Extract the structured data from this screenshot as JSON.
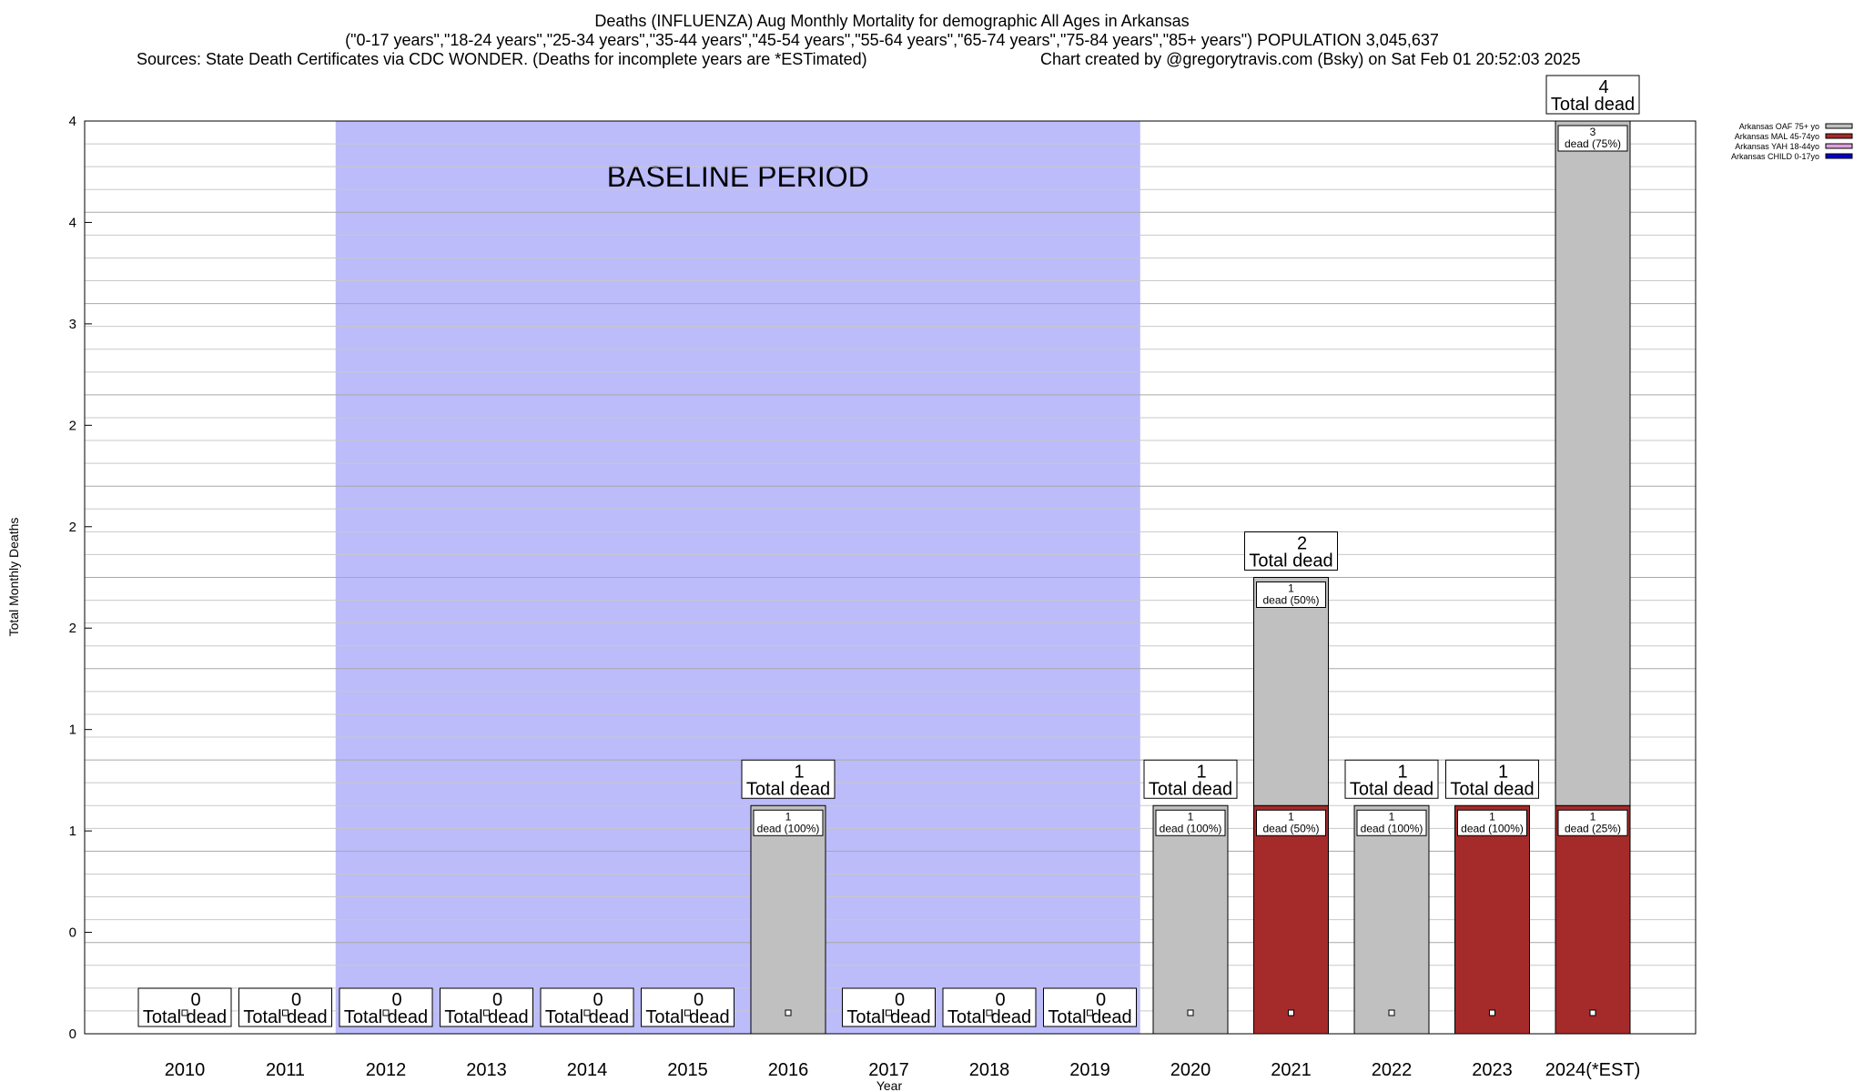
{
  "chart_data": {
    "type": "bar",
    "title": "Deaths (INFLUENZA) Aug Monthly Mortality for demographic All Ages in Arkansas",
    "subtitle": "(\"0-17 years\",\"18-24 years\",\"25-34 years\",\"35-44 years\",\"45-54 years\",\"55-64 years\",\"65-74 years\",\"75-84 years\",\"85+ years\") POPULATION 3,045,637",
    "source_note": "Sources: State Death Certificates via CDC WONDER. (Deaths for incomplete years are *ESTimated)",
    "credit_note": "Chart created by @gregorytravis.com (Bsky) on Sat Feb 01 20:52:03 2025",
    "xlabel": "Year",
    "ylabel": "Total Monthly Deaths",
    "ylim": [
      0,
      4
    ],
    "ytick_labels": [
      "0",
      "0",
      "1",
      "1",
      "2",
      "2",
      "2",
      "3",
      "4",
      "4"
    ],
    "categories": [
      "2010",
      "2011",
      "2012",
      "2013",
      "2014",
      "2015",
      "2016",
      "2017",
      "2018",
      "2019",
      "2020",
      "2021",
      "2022",
      "2023",
      "2024(*EST)"
    ],
    "baseline": {
      "label": "BASELINE PERIOD",
      "from": "2012",
      "to": "2019",
      "color": "#bcbcfb"
    },
    "total_suffix": "Total dead",
    "totals": [
      0,
      0,
      0,
      0,
      0,
      0,
      1,
      0,
      0,
      0,
      1,
      2,
      1,
      1,
      4
    ],
    "series": [
      {
        "name": "Arkansas OAF 75+ yo",
        "color": "#c0c0c0",
        "values": [
          0,
          0,
          0,
          0,
          0,
          0,
          1,
          0,
          0,
          0,
          1,
          1,
          1,
          0,
          3
        ]
      },
      {
        "name": "Arkansas MAL 45-74yo",
        "color": "#a52a2a",
        "values": [
          0,
          0,
          0,
          0,
          0,
          0,
          0,
          0,
          0,
          0,
          0,
          1,
          0,
          1,
          1
        ]
      },
      {
        "name": "Arkansas YAH 18-44yo",
        "color": "#dda0dd",
        "values": [
          0,
          0,
          0,
          0,
          0,
          0,
          0,
          0,
          0,
          0,
          0,
          0,
          0,
          0,
          0
        ]
      },
      {
        "name": "Arkansas CHILD 0-17yo",
        "color": "#0000cd",
        "values": [
          0,
          0,
          0,
          0,
          0,
          0,
          0,
          0,
          0,
          0,
          0,
          0,
          0,
          0,
          0
        ]
      }
    ],
    "segment_labels": [
      {
        "category": "2016",
        "series": 0,
        "count": "1",
        "text": "dead (100%)"
      },
      {
        "category": "2020",
        "series": 0,
        "count": "1",
        "text": "dead (100%)"
      },
      {
        "category": "2021",
        "series": 1,
        "count": "1",
        "text": "dead (50%)"
      },
      {
        "category": "2021",
        "series": 0,
        "count": "1",
        "text": "dead (50%)"
      },
      {
        "category": "2022",
        "series": 0,
        "count": "1",
        "text": "dead (100%)"
      },
      {
        "category": "2023",
        "series": 1,
        "count": "1",
        "text": "dead (100%)"
      },
      {
        "category": "2024(*EST)",
        "series": 1,
        "count": "1",
        "text": "dead (25%)"
      },
      {
        "category": "2024(*EST)",
        "series": 0,
        "count": "3",
        "text": "dead (75%)"
      }
    ],
    "grid": true,
    "legend_position": "top-right"
  }
}
